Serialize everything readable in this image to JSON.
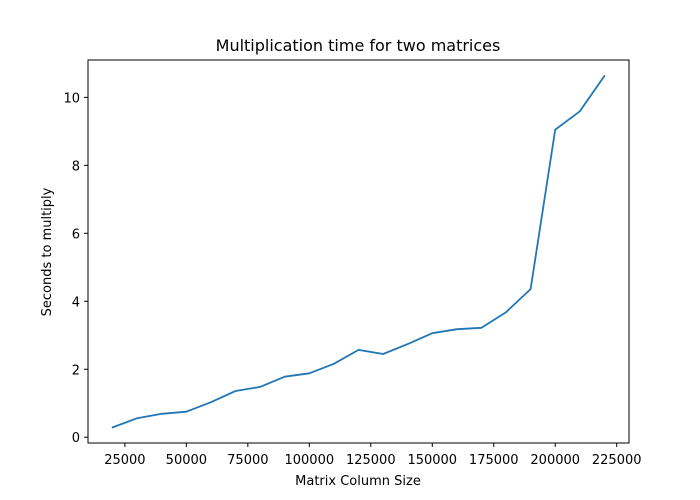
{
  "chart_data": {
    "type": "line",
    "title": "Multiplication time for two matrices",
    "xlabel": "Matrix Column Size",
    "ylabel": "Seconds to multiply",
    "xlim": [
      10000,
      230000
    ],
    "ylim": [
      -0.17,
      11.1
    ],
    "xticks": [
      25000,
      50000,
      75000,
      100000,
      125000,
      150000,
      175000,
      200000,
      225000
    ],
    "xtick_labels": [
      "25000",
      "50000",
      "75000",
      "100000",
      "125000",
      "150000",
      "175000",
      "200000",
      "225000"
    ],
    "yticks": [
      0,
      2,
      4,
      6,
      8,
      10
    ],
    "ytick_labels": [
      "0",
      "2",
      "4",
      "6",
      "8",
      "10"
    ],
    "grid": false,
    "series": [
      {
        "color": "#1f77b4",
        "x": [
          20000,
          30000,
          40000,
          50000,
          60000,
          70000,
          80000,
          90000,
          100000,
          110000,
          120000,
          130000,
          140000,
          150000,
          160000,
          170000,
          180000,
          190000,
          200000,
          210000,
          220000
        ],
        "y": [
          0.29,
          0.56,
          0.69,
          0.75,
          1.03,
          1.36,
          1.48,
          1.78,
          1.88,
          2.16,
          2.57,
          2.45,
          2.74,
          3.06,
          3.18,
          3.22,
          3.68,
          4.36,
          9.05,
          9.59,
          10.63
        ]
      }
    ]
  }
}
